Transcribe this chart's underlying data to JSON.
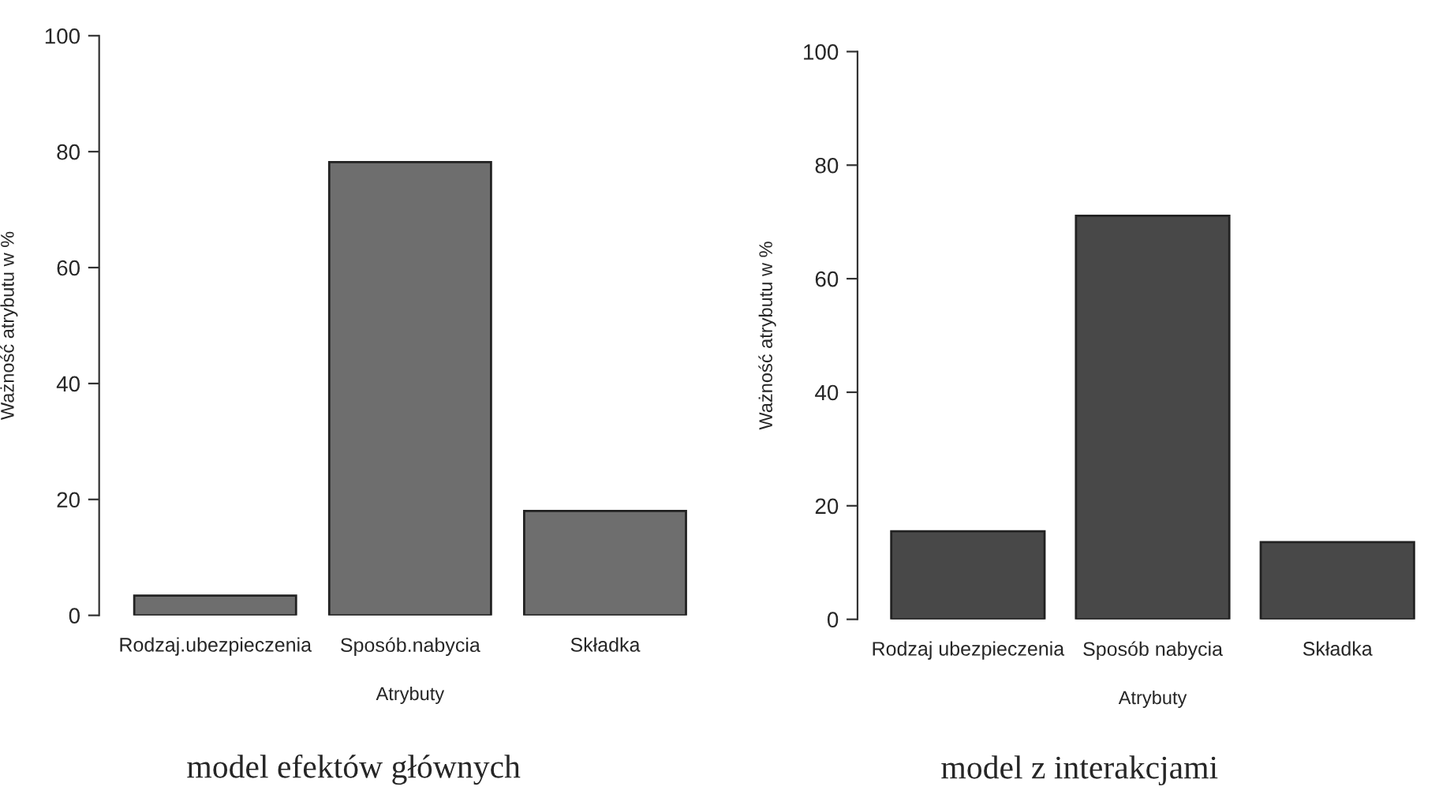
{
  "chart_data": [
    {
      "type": "bar",
      "xlabel": "Atrybuty",
      "ylabel": "Ważność atrybutu w %",
      "categories": [
        "Rodzaj.ubezpieczenia",
        "Sposób.nabycia",
        "Składka"
      ],
      "values": [
        3.4,
        78.2,
        18.0
      ],
      "color": "#6e6e6e",
      "ylim": [
        0,
        100
      ],
      "yticks": [
        0,
        20,
        40,
        60,
        80,
        100
      ],
      "grid": false,
      "annotations": [
        "model efektów głównych"
      ]
    },
    {
      "type": "bar",
      "xlabel": "Atrybuty",
      "ylabel": "Ważność atrybutu w %",
      "categories": [
        "Rodzaj ubezpieczenia",
        "Sposób nabycia",
        "Składka"
      ],
      "values": [
        15.5,
        71.1,
        13.6
      ],
      "color": "#484848",
      "ylim": [
        0,
        100
      ],
      "yticks": [
        0,
        20,
        40,
        60,
        80,
        100
      ],
      "grid": false,
      "annotations": [
        "model z interakcjami"
      ]
    }
  ]
}
